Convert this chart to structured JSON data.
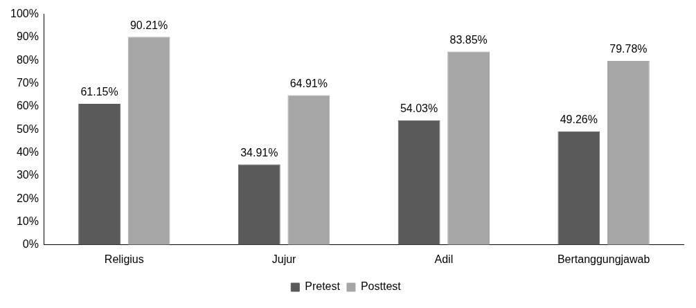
{
  "chart_data": {
    "type": "bar",
    "categories": [
      "Religius",
      "Jujur",
      "Adil",
      "Bertanggungjawab"
    ],
    "series": [
      {
        "name": "Pretest",
        "color": "#5a5a5a",
        "values": [
          61.15,
          34.91,
          54.03,
          49.26
        ],
        "value_labels": [
          "61.15%",
          "34.91%",
          "54.03%",
          "49.26%"
        ]
      },
      {
        "name": "Posttest",
        "color": "#a6a6a6",
        "values": [
          90.21,
          64.91,
          83.85,
          79.78
        ],
        "value_labels": [
          "90.21%",
          "64.91%",
          "83.85%",
          "79.78%"
        ]
      }
    ],
    "ylim": [
      0,
      100
    ],
    "yticks": [
      {
        "value": 0,
        "label": "0%"
      },
      {
        "value": 10,
        "label": "10%"
      },
      {
        "value": 20,
        "label": "20%"
      },
      {
        "value": 30,
        "label": "30%"
      },
      {
        "value": 40,
        "label": "40%"
      },
      {
        "value": 50,
        "label": "50%"
      },
      {
        "value": 60,
        "label": "60%"
      },
      {
        "value": 70,
        "label": "70%"
      },
      {
        "value": 80,
        "label": "80%"
      },
      {
        "value": 90,
        "label": "90%"
      },
      {
        "value": 100,
        "label": "100%"
      }
    ],
    "grid": false,
    "legend": "bottom"
  }
}
